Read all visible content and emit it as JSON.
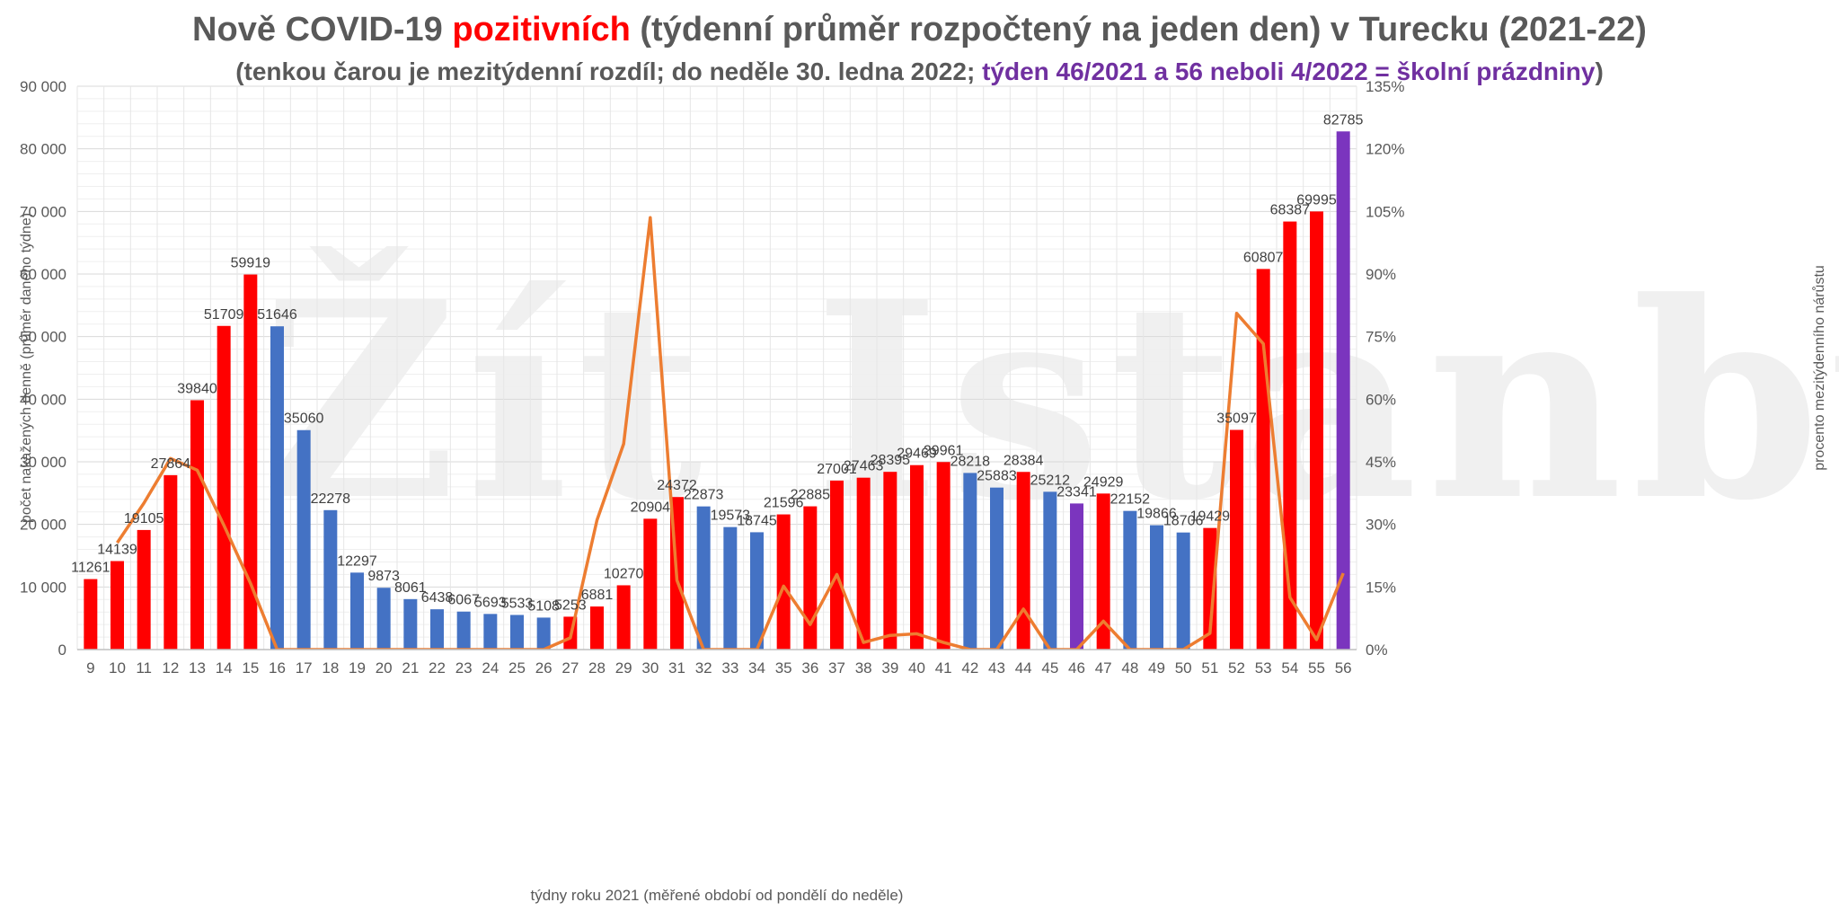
{
  "title": {
    "part1": "Nově COVID-19 ",
    "highlight": "pozitivních",
    "part2": " (týdenní průměr rozpočtený na jeden den) v Turecku (2021-22)"
  },
  "subtitle": {
    "part1": "(tenkou čarou je mezitýdenní rozdíl; do neděle 30. ledna 2022; ",
    "highlight": "týden 46/2021 a 56 neboli 4/2022 = školní prázdniny",
    "part2": ")"
  },
  "watermark": "Žít Istanbul",
  "colors": {
    "rising": "#ff0000",
    "falling": "#4472c4",
    "holiday": "#7b35be",
    "line": "#ed7d31"
  },
  "chart_data": {
    "type": "bar",
    "xlabel": "týdny roku 2021 (měřené období od pondělí do neděle)",
    "ylabel": "počet nakažených denně (průměr daného týdne)",
    "y2label": "procento mezitýdenního nárůstu",
    "ylim": [
      0,
      90000
    ],
    "y2lim": [
      0,
      135
    ],
    "yticks": [
      "0",
      "10 000",
      "20 000",
      "30 000",
      "40 000",
      "50 000",
      "60 000",
      "70 000",
      "80 000",
      "90 000"
    ],
    "y2ticks": [
      "0%",
      "15%",
      "30%",
      "45%",
      "60%",
      "75%",
      "90%",
      "105%",
      "120%",
      "135%"
    ],
    "categories": [
      "9",
      "10",
      "11",
      "12",
      "13",
      "14",
      "15",
      "16",
      "17",
      "18",
      "19",
      "20",
      "21",
      "22",
      "23",
      "24",
      "25",
      "26",
      "27",
      "28",
      "29",
      "30",
      "31",
      "32",
      "33",
      "34",
      "35",
      "36",
      "37",
      "38",
      "39",
      "40",
      "41",
      "42",
      "43",
      "44",
      "45",
      "46",
      "47",
      "48",
      "49",
      "50",
      "51",
      "52",
      "53",
      "54",
      "55",
      "56"
    ],
    "values": [
      11261,
      14139,
      19105,
      27864,
      39840,
      51709,
      59919,
      51646,
      35060,
      22278,
      12297,
      9873,
      8061,
      6438,
      6067,
      5693,
      5533,
      5108,
      5253,
      6881,
      10270,
      20904,
      24372,
      22873,
      19573,
      18745,
      21596,
      22885,
      27001,
      27463,
      28395,
      29469,
      29961,
      28218,
      25883,
      28384,
      25212,
      23341,
      24929,
      22152,
      19866,
      18706,
      19429,
      35097,
      60807,
      68387,
      69995,
      82785
    ],
    "bar_colors": [
      "rising",
      "rising",
      "rising",
      "rising",
      "rising",
      "rising",
      "rising",
      "falling",
      "falling",
      "falling",
      "falling",
      "falling",
      "falling",
      "falling",
      "falling",
      "falling",
      "falling",
      "falling",
      "rising",
      "rising",
      "rising",
      "rising",
      "rising",
      "falling",
      "falling",
      "falling",
      "rising",
      "rising",
      "rising",
      "rising",
      "rising",
      "rising",
      "rising",
      "falling",
      "falling",
      "rising",
      "falling",
      "holiday",
      "rising",
      "falling",
      "falling",
      "falling",
      "rising",
      "rising",
      "rising",
      "rising",
      "rising",
      "holiday"
    ],
    "line_series": {
      "name": "mezitýdenní rozdíl (%)",
      "start_category": "10",
      "values": [
        25.6,
        35.1,
        45.8,
        43.0,
        29.8,
        15.9,
        0,
        0,
        0,
        0,
        0,
        0,
        0,
        0,
        0,
        0,
        0,
        2.8,
        31.0,
        49.3,
        103.5,
        16.6,
        0,
        0,
        0,
        15.2,
        6.0,
        18.0,
        1.7,
        3.4,
        3.8,
        1.7,
        0,
        0,
        9.7,
        0,
        0,
        6.8,
        0,
        0,
        0,
        3.9,
        80.6,
        73.3,
        12.5,
        2.4,
        18.3
      ]
    }
  }
}
